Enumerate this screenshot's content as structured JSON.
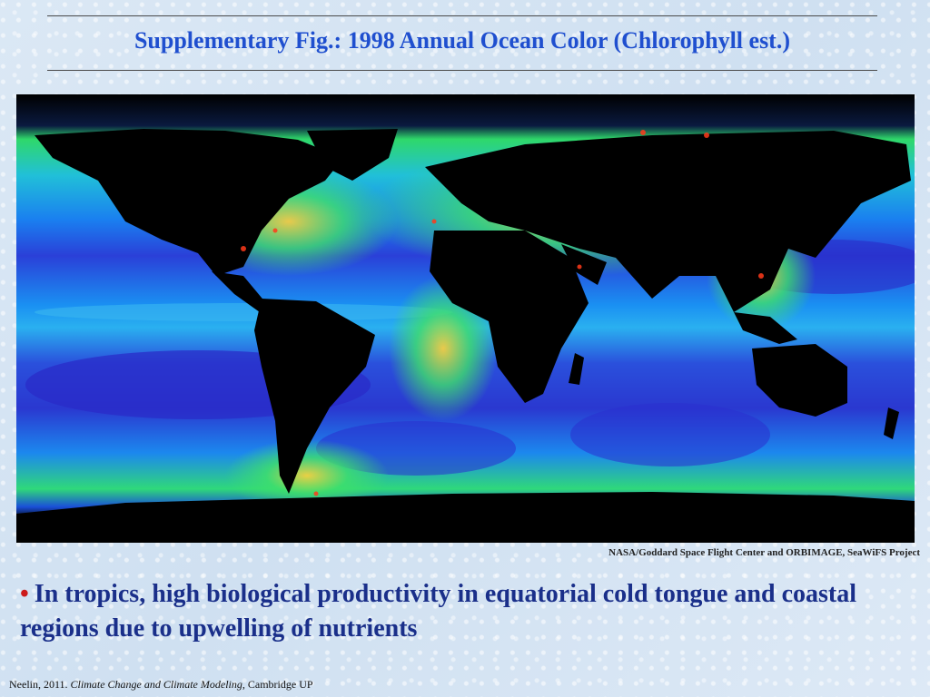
{
  "slide": {
    "title": "Supplementary Fig.: 1998 Annual Ocean Color (Chlorophyll est.)",
    "credit": "NASA/Goddard Space Flight Center and ORBIMAGE,  SeaWiFS Project",
    "bullet_symbol": "•",
    "bullet_text": "In tropics, high biological productivity in equatorial cold tongue and coastal regions due to upwelling of nutrients",
    "footer": {
      "author_year": "Neelin, 2011.",
      "book_title": "Climate Change and Climate Modeling,",
      "publisher": "Cambridge UP"
    }
  },
  "colors": {
    "title": "#1f4fcf",
    "bullet_text": "#1a2f8a",
    "bullet_symbol": "#cc1a1a",
    "land": "#000000",
    "ocean_low": "#2a2fd0",
    "ocean_mid": "#1d7ff0",
    "ocean_high": "#35e07a",
    "coastal_peak": "#ff3a1a"
  },
  "map": {
    "type": "global chlorophyll satellite map",
    "land_color_meaning": "black"
  }
}
